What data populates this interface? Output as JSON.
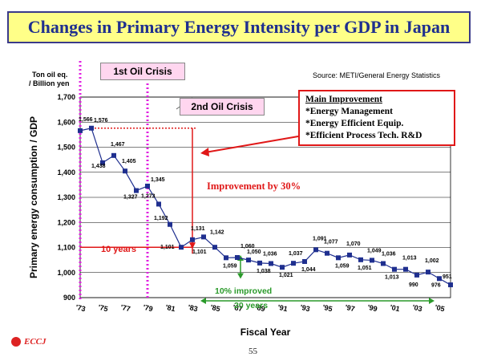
{
  "title": "Changes in Primary Energy Intensity per GDP in Japan",
  "source": "Source: METI/General  Energy Statistics",
  "unit_label": [
    "Ton oil eq.",
    "/ Billion yen"
  ],
  "callout": {
    "heading": "Main Improvement",
    "items": [
      "*Energy Management",
      "*Energy Efficient Equip.",
      "*Efficient Process Tech. R&D"
    ]
  },
  "crisis_labels": {
    "first": "1st Oil Crisis",
    "second": "2nd Oil Crisis"
  },
  "annotations": {
    "improvement": "Improvement by 30%",
    "ten_years": "10 years",
    "ten_percent": "10% improved",
    "twenty_years": "20 years"
  },
  "logo": "ECCJ",
  "page_number": "55",
  "colors": {
    "series": "#1f2f8f",
    "accent": "#e01818",
    "crisis_line": "#e020e0",
    "green": "#2a9a2a"
  },
  "chart_data": {
    "type": "line",
    "title": "Changes in Primary Energy Intensity per GDP in Japan",
    "xlabel": "Fiscal Year",
    "ylabel": "Primary energy consumption / GDP",
    "ylim": [
      900,
      1700
    ],
    "yticks": [
      "900",
      "1,000",
      "1,100",
      "1,200",
      "1,300",
      "1,400",
      "1,500",
      "1,600",
      "1,700"
    ],
    "xticks": [
      "'73",
      "'75",
      "'77",
      "'79",
      "'81",
      "'83",
      "'85",
      "'87",
      "'89",
      "'91",
      "'93",
      "'95",
      "'97",
      "'99",
      "'01",
      "'03",
      "'05"
    ],
    "x": [
      1973,
      1974,
      1975,
      1976,
      1977,
      1978,
      1979,
      1980,
      1981,
      1982,
      1983,
      1984,
      1985,
      1986,
      1987,
      1988,
      1989,
      1990,
      1991,
      1992,
      1993,
      1994,
      1995,
      1996,
      1997,
      1998,
      1999,
      2000,
      2001,
      2002,
      2003,
      2004,
      2005,
      2006
    ],
    "values": [
      1566,
      1576,
      1438,
      1467,
      1405,
      1327,
      1345,
      1273,
      1192,
      1101,
      1131,
      1142,
      1101,
      1059,
      1060,
      1050,
      1038,
      1036,
      1021,
      1037,
      1044,
      1091,
      1077,
      1059,
      1070,
      1051,
      1049,
      1036,
      1013,
      1013,
      990,
      1002,
      976,
      951
    ],
    "labels": [
      "1,566",
      "1,576",
      "1,438",
      "1,467",
      "1,405",
      "1,327",
      "1,345",
      "1,273",
      "1,192",
      "1,101",
      "1,131",
      "1,142",
      "1,101",
      "1,059",
      "1,060",
      "1,050",
      "1,038",
      "1,036",
      "1,021",
      "1,037",
      "1,044",
      "1,091",
      "1,077",
      "1,059",
      "1,070",
      "1,051",
      "1,049",
      "1,036",
      "1,013",
      "1,013",
      "990",
      "1,002",
      "976",
      "951"
    ],
    "grid": true
  }
}
